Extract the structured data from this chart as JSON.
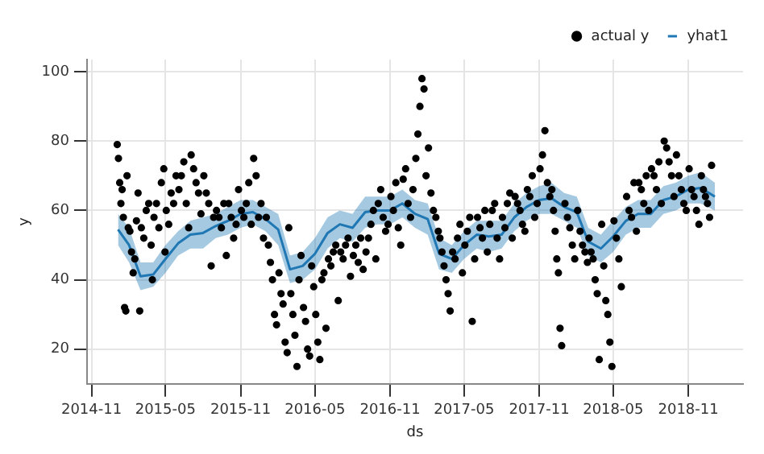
{
  "chart_data": {
    "type": "line",
    "xlabel": "ds",
    "ylabel": "y",
    "xlim": [
      "2014-10-21",
      "2019-03-15"
    ],
    "xticks": [
      "2014-11",
      "2015-05",
      "2015-11",
      "2016-05",
      "2016-11",
      "2017-05",
      "2017-11",
      "2018-05",
      "2018-11"
    ],
    "ylim": [
      10,
      103.5
    ],
    "yticks": [
      20,
      40,
      60,
      80,
      100
    ],
    "grid": true,
    "legend": "top right",
    "series": [
      {
        "name": "yhat1",
        "color": "#1f77b4",
        "marker": "none",
        "x": [
          "2015-01-05",
          "2015-02-01",
          "2015-03-01",
          "2015-04-01",
          "2015-05-01",
          "2015-06-01",
          "2015-07-01",
          "2015-08-01",
          "2015-09-01",
          "2015-10-01",
          "2015-11-01",
          "2015-12-01",
          "2016-01-01",
          "2016-02-01",
          "2016-03-01",
          "2016-04-01",
          "2016-05-01",
          "2016-06-01",
          "2016-07-01",
          "2016-08-01",
          "2016-09-01",
          "2016-10-01",
          "2016-11-01",
          "2016-12-01",
          "2017-01-01",
          "2017-02-01",
          "2017-03-01",
          "2017-04-01",
          "2017-05-01",
          "2017-06-01",
          "2017-07-01",
          "2017-08-01",
          "2017-09-01",
          "2017-10-01",
          "2017-11-01",
          "2017-12-01",
          "2018-01-01",
          "2018-02-01",
          "2018-03-01",
          "2018-04-01",
          "2018-05-01",
          "2018-06-01",
          "2018-07-01",
          "2018-08-01",
          "2018-09-01",
          "2018-10-01",
          "2018-11-01",
          "2018-12-01",
          "2019-01-05"
        ],
        "upper": [
          59,
          55,
          45,
          45,
          50,
          54,
          57,
          58,
          59,
          61,
          63,
          63,
          61,
          59,
          47,
          48,
          52,
          58,
          60,
          59,
          64,
          64,
          64,
          66,
          63,
          62,
          52,
          50,
          54,
          57,
          57,
          57,
          62,
          65,
          67,
          68,
          65,
          64,
          55,
          53,
          57,
          61,
          63,
          63,
          67,
          68,
          70,
          71,
          68
        ],
        "lower": [
          50,
          45,
          37,
          38,
          42,
          47,
          49,
          49,
          52,
          53,
          55,
          56,
          54,
          50,
          39,
          40,
          43,
          49,
          52,
          51,
          55,
          56,
          56,
          58,
          55,
          53,
          43,
          42,
          46,
          49,
          48,
          49,
          54,
          57,
          59,
          59,
          57,
          55,
          47,
          45,
          48,
          53,
          55,
          55,
          59,
          60,
          62,
          62,
          60
        ],
        "values": [
          54.5,
          50,
          41,
          41.5,
          46,
          50.5,
          53,
          53.5,
          55.5,
          57,
          59,
          59.5,
          57.5,
          54.5,
          43,
          44,
          47.5,
          53.5,
          56,
          55,
          59.5,
          60,
          60,
          62,
          59,
          57.5,
          47.5,
          46,
          50,
          53,
          52.5,
          53,
          58,
          61,
          63,
          63.5,
          61,
          59.5,
          51,
          49,
          52.5,
          57,
          59,
          59,
          63,
          64,
          66,
          66.5,
          64
        ]
      },
      {
        "name": "actual y",
        "type": "scatter",
        "color": "#000000",
        "marker": "circle",
        "x": [
          "2015-01-03",
          "2015-01-06",
          "2015-01-09",
          "2015-01-12",
          "2015-01-15",
          "2015-01-18",
          "2015-01-21",
          "2015-01-24",
          "2015-01-27",
          "2015-01-30",
          "2015-02-03",
          "2015-02-07",
          "2015-02-11",
          "2015-02-15",
          "2015-02-19",
          "2015-02-23",
          "2015-02-27",
          "2015-03-03",
          "2015-03-09",
          "2015-03-15",
          "2015-03-21",
          "2015-03-27",
          "2015-03-30",
          "2015-04-03",
          "2015-04-09",
          "2015-04-15",
          "2015-04-21",
          "2015-04-27",
          "2015-04-30",
          "2015-05-03",
          "2015-05-09",
          "2015-05-15",
          "2015-05-21",
          "2015-05-27",
          "2015-06-03",
          "2015-06-09",
          "2015-06-15",
          "2015-06-21",
          "2015-06-27",
          "2015-07-03",
          "2015-07-09",
          "2015-07-15",
          "2015-07-21",
          "2015-07-27",
          "2015-08-03",
          "2015-08-09",
          "2015-08-15",
          "2015-08-21",
          "2015-08-27",
          "2015-09-03",
          "2015-09-09",
          "2015-09-15",
          "2015-09-21",
          "2015-09-27",
          "2015-10-03",
          "2015-10-09",
          "2015-10-15",
          "2015-10-21",
          "2015-10-27",
          "2015-11-03",
          "2015-11-09",
          "2015-11-15",
          "2015-11-21",
          "2015-11-27",
          "2015-12-03",
          "2015-12-09",
          "2015-12-15",
          "2015-12-21",
          "2015-12-27",
          "2016-01-03",
          "2016-01-08",
          "2016-01-13",
          "2016-01-18",
          "2016-01-23",
          "2016-01-28",
          "2016-02-03",
          "2016-02-08",
          "2016-02-13",
          "2016-02-18",
          "2016-02-23",
          "2016-02-27",
          "2016-03-03",
          "2016-03-08",
          "2016-03-13",
          "2016-03-18",
          "2016-03-23",
          "2016-03-28",
          "2016-04-03",
          "2016-04-08",
          "2016-04-13",
          "2016-04-18",
          "2016-04-23",
          "2016-04-28",
          "2016-05-03",
          "2016-05-08",
          "2016-05-13",
          "2016-05-18",
          "2016-05-23",
          "2016-05-28",
          "2016-06-03",
          "2016-06-09",
          "2016-06-15",
          "2016-06-21",
          "2016-06-27",
          "2016-07-03",
          "2016-07-09",
          "2016-07-15",
          "2016-07-21",
          "2016-07-27",
          "2016-08-03",
          "2016-08-09",
          "2016-08-15",
          "2016-08-21",
          "2016-08-27",
          "2016-09-03",
          "2016-09-09",
          "2016-09-15",
          "2016-09-21",
          "2016-09-27",
          "2016-10-03",
          "2016-10-09",
          "2016-10-15",
          "2016-10-21",
          "2016-10-27",
          "2016-11-03",
          "2016-11-09",
          "2016-11-15",
          "2016-11-21",
          "2016-11-27",
          "2016-12-03",
          "2016-12-09",
          "2016-12-15",
          "2016-12-21",
          "2016-12-27",
          "2017-01-03",
          "2017-01-08",
          "2017-01-13",
          "2017-01-18",
          "2017-01-23",
          "2017-01-28",
          "2017-02-03",
          "2017-02-09",
          "2017-02-15",
          "2017-02-21",
          "2017-02-27",
          "2017-03-03",
          "2017-03-08",
          "2017-03-13",
          "2017-03-18",
          "2017-03-23",
          "2017-03-28",
          "2017-04-03",
          "2017-04-09",
          "2017-04-15",
          "2017-04-21",
          "2017-04-27",
          "2017-05-03",
          "2017-05-09",
          "2017-05-15",
          "2017-05-21",
          "2017-05-27",
          "2017-06-03",
          "2017-06-09",
          "2017-06-15",
          "2017-06-21",
          "2017-06-27",
          "2017-07-03",
          "2017-07-09",
          "2017-07-15",
          "2017-07-21",
          "2017-07-27",
          "2017-08-03",
          "2017-08-09",
          "2017-08-15",
          "2017-08-21",
          "2017-08-27",
          "2017-09-03",
          "2017-09-09",
          "2017-09-15",
          "2017-09-21",
          "2017-09-27",
          "2017-10-03",
          "2017-10-09",
          "2017-10-15",
          "2017-10-21",
          "2017-10-27",
          "2017-11-03",
          "2017-11-09",
          "2017-11-15",
          "2017-11-21",
          "2017-11-27",
          "2017-12-02",
          "2017-12-06",
          "2017-12-10",
          "2017-12-14",
          "2017-12-18",
          "2017-12-22",
          "2017-12-26",
          "2018-01-03",
          "2018-01-09",
          "2018-01-15",
          "2018-01-21",
          "2018-01-27",
          "2018-02-03",
          "2018-02-09",
          "2018-02-15",
          "2018-02-21",
          "2018-02-27",
          "2018-03-03",
          "2018-03-08",
          "2018-03-13",
          "2018-03-18",
          "2018-03-23",
          "2018-03-28",
          "2018-04-03",
          "2018-04-08",
          "2018-04-13",
          "2018-04-18",
          "2018-04-23",
          "2018-04-28",
          "2018-05-03",
          "2018-05-09",
          "2018-05-15",
          "2018-05-21",
          "2018-06-03",
          "2018-06-09",
          "2018-06-15",
          "2018-06-21",
          "2018-06-27",
          "2018-07-03",
          "2018-07-09",
          "2018-07-15",
          "2018-07-21",
          "2018-07-27",
          "2018-08-03",
          "2018-08-09",
          "2018-08-15",
          "2018-08-21",
          "2018-08-27",
          "2018-09-03",
          "2018-09-09",
          "2018-09-15",
          "2018-09-21",
          "2018-09-27",
          "2018-10-03",
          "2018-10-09",
          "2018-10-15",
          "2018-10-21",
          "2018-10-27",
          "2018-11-03",
          "2018-11-09",
          "2018-11-15",
          "2018-11-21",
          "2018-11-27",
          "2018-12-03",
          "2018-12-08",
          "2018-12-13",
          "2018-12-18",
          "2018-12-23",
          "2018-12-28"
        ],
        "values": [
          79,
          75,
          68,
          62,
          66,
          58,
          32,
          31,
          70,
          55,
          54,
          48,
          42,
          46,
          57,
          65,
          31,
          55,
          52,
          60,
          62,
          50,
          40,
          58,
          62,
          55,
          68,
          72,
          48,
          60,
          56,
          65,
          62,
          70,
          66,
          70,
          74,
          62,
          55,
          76,
          72,
          68,
          65,
          59,
          70,
          65,
          62,
          44,
          58,
          60,
          58,
          55,
          62,
          47,
          62,
          58,
          52,
          56,
          66,
          60,
          58,
          62,
          68,
          56,
          75,
          70,
          58,
          62,
          52,
          58,
          50,
          45,
          40,
          30,
          27,
          42,
          36,
          33,
          22,
          19,
          55,
          36,
          30,
          24,
          15,
          40,
          47,
          32,
          28,
          20,
          18,
          44,
          38,
          30,
          22,
          17,
          40,
          42,
          26,
          46,
          44,
          48,
          50,
          34,
          48,
          46,
          50,
          52,
          41,
          47,
          50,
          45,
          52,
          43,
          48,
          52,
          56,
          60,
          46,
          62,
          66,
          58,
          54,
          56,
          64,
          60,
          68,
          55,
          50,
          69,
          72,
          62,
          58,
          66,
          75,
          82,
          90,
          98,
          95,
          70,
          78,
          65,
          60,
          58,
          54,
          52,
          48,
          44,
          40,
          36,
          31,
          48,
          46,
          52,
          56,
          42,
          50,
          54,
          58,
          28,
          46,
          58,
          55,
          52,
          60,
          48,
          56,
          60,
          62,
          52,
          46,
          58,
          55,
          62,
          65,
          52,
          64,
          62,
          60,
          56,
          54,
          66,
          64,
          70,
          58,
          62,
          72,
          76,
          83,
          68,
          64,
          66,
          60,
          54,
          46,
          42,
          26,
          21,
          62,
          58,
          55,
          50,
          46,
          60,
          54,
          50,
          48,
          45,
          52,
          48,
          46,
          40,
          36,
          17,
          56,
          44,
          34,
          30,
          22,
          15,
          57,
          52,
          46,
          38,
          64,
          60,
          58,
          68,
          54,
          68,
          66,
          62,
          70,
          60,
          72,
          70,
          66,
          74,
          62,
          80,
          78,
          74,
          70,
          64,
          76,
          70,
          66,
          62,
          60,
          72,
          66,
          64,
          60,
          56,
          70,
          66,
          64,
          62,
          58,
          73
        ]
      }
    ]
  }
}
